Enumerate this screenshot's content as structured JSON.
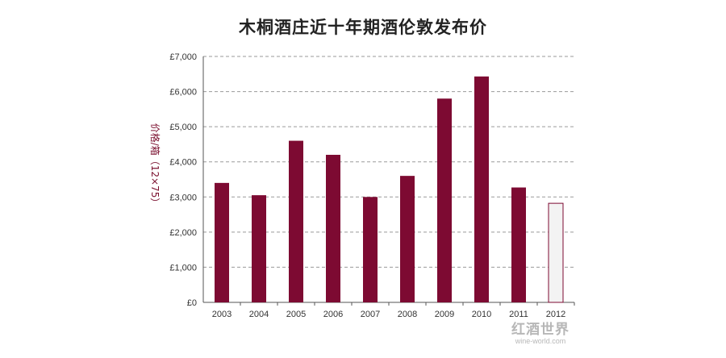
{
  "chart_data": {
    "type": "bar",
    "title": "木桐酒庄近十年期酒伦敦发布价",
    "xlabel": "",
    "ylabel": "价格/箱（12×75）",
    "categories": [
      "2003",
      "2004",
      "2005",
      "2006",
      "2007",
      "2008",
      "2009",
      "2010",
      "2011",
      "2012"
    ],
    "values": [
      3400,
      3050,
      4600,
      4200,
      3000,
      3600,
      5800,
      6430,
      3270,
      2820
    ],
    "ylim": [
      0,
      7000
    ],
    "yticks": [
      0,
      1000,
      2000,
      3000,
      4000,
      5000,
      6000,
      7000
    ],
    "ytick_labels": [
      "£0",
      "£1,000",
      "£2,000",
      "£3,000",
      "£4,000",
      "£5,000",
      "£6,000",
      "£7,000"
    ],
    "grid": true,
    "colors": {
      "bar": "#7d0a32",
      "highlight_bar_fill": "#f3f3f3",
      "highlight_bar_stroke": "#7d0a32",
      "ylabel": "#7a0f2e",
      "grid": "#9a9a9a"
    },
    "highlight_category": "2012"
  },
  "watermark": {
    "main": "红酒世界",
    "sub": "wine-world.com"
  }
}
